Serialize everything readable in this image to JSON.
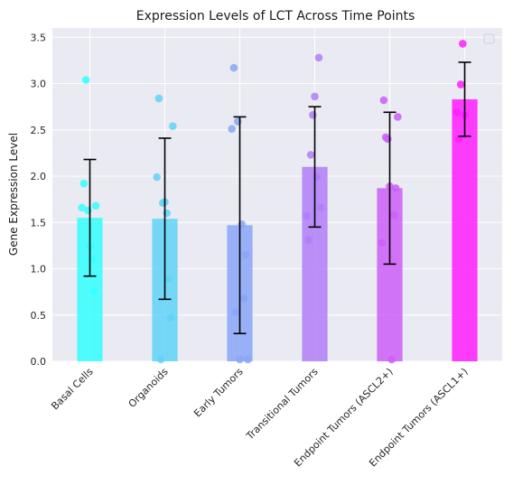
{
  "chart_data": {
    "type": "bar",
    "title": "Expression Levels of LCT Across Time Points",
    "xlabel": "",
    "ylabel": "Gene Expression Level",
    "ylim": [
      0,
      3.6
    ],
    "yticks": [
      "0.0",
      "0.5",
      "1.0",
      "1.5",
      "2.0",
      "2.5",
      "3.0",
      "3.5"
    ],
    "grid": true,
    "legend": "top-right (empty)",
    "categories": [
      "Basal Cells",
      "Organoids",
      "Early Tumors",
      "Transitional Tumors",
      "Endpoint Tumors (ASCL2+)",
      "Endpoint Tumors (ASCL1+)"
    ],
    "values": [
      1.55,
      1.54,
      1.47,
      2.1,
      1.87,
      2.83
    ],
    "error": [
      0.63,
      0.87,
      1.17,
      0.65,
      0.82,
      0.4
    ],
    "colors": [
      "#33ffff",
      "#5fd3f8",
      "#8aa6f8",
      "#b07ef8",
      "#cc5ef8",
      "#ff1cff"
    ],
    "points": [
      [
        1.66,
        1.92,
        3.04,
        1.63,
        1.24,
        1.1,
        0.76,
        1.68
      ],
      [
        1.99,
        2.84,
        0.02,
        1.71,
        1.72,
        1.6,
        0.89,
        0.47,
        2.54
      ],
      [
        2.51,
        3.17,
        0.53,
        2.59,
        0.02,
        1.48,
        0.68,
        1.15,
        0.02
      ],
      [
        1.57,
        1.31,
        2.23,
        2.66,
        2.86,
        1.99,
        3.28,
        1.66
      ],
      [
        1.28,
        2.82,
        2.42,
        2.4,
        1.89,
        0.02,
        1.58,
        1.87,
        2.64
      ],
      [
        2.69,
        2.4,
        2.99,
        3.43,
        2.66
      ]
    ]
  }
}
